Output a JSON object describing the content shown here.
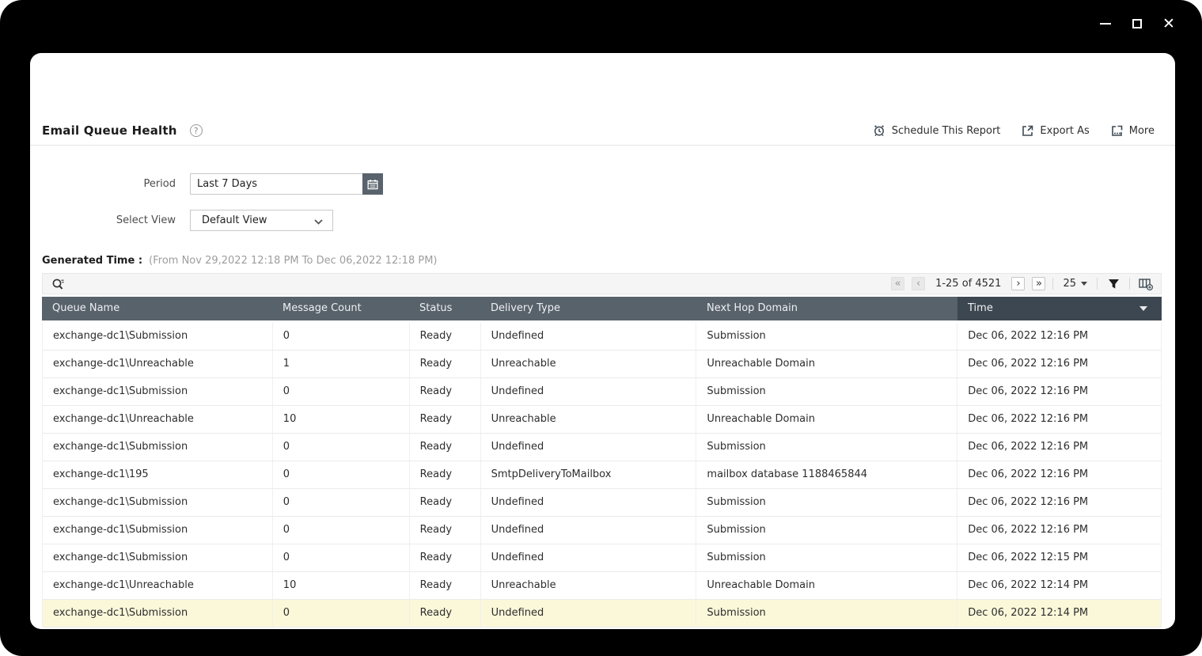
{
  "window": {
    "controls": [
      "minimize",
      "maximize",
      "close"
    ]
  },
  "header": {
    "title": "Email Queue Health",
    "help": "?",
    "actions": [
      {
        "icon": "alarm-clock",
        "label": "Schedule This Report"
      },
      {
        "icon": "export",
        "label": "Export As"
      },
      {
        "icon": "more",
        "label": "More"
      }
    ]
  },
  "filters": {
    "period_label": "Period",
    "period_value": "Last 7 Days",
    "select_view_label": "Select View",
    "select_view_value": "Default View"
  },
  "generated_time": {
    "label": "Generated Time :",
    "range": "(From Nov 29,2022 12:18 PM To Dec 06,2022 12:18 PM)"
  },
  "toolbar": {
    "pagination": {
      "first": "«",
      "prev": "‹",
      "range": "1-25 of 4521",
      "next": "›",
      "last": "»"
    },
    "page_size": "25"
  },
  "table": {
    "columns": [
      "Queue Name",
      "Message Count",
      "Status",
      "Delivery Type",
      "Next Hop Domain",
      "Time"
    ],
    "sort_column": "Time",
    "sort_direction": "desc",
    "rows": [
      {
        "queue": "exchange-dc1\\Submission",
        "count": "0",
        "status": "Ready",
        "delivery": "Undefined",
        "next_hop": "Submission",
        "time": "Dec 06, 2022 12:16 PM",
        "highlighted": false
      },
      {
        "queue": "exchange-dc1\\Unreachable",
        "count": "1",
        "status": "Ready",
        "delivery": "Unreachable",
        "next_hop": "Unreachable Domain",
        "time": "Dec 06, 2022 12:16 PM",
        "highlighted": false
      },
      {
        "queue": "exchange-dc1\\Submission",
        "count": "0",
        "status": "Ready",
        "delivery": "Undefined",
        "next_hop": "Submission",
        "time": "Dec 06, 2022 12:16 PM",
        "highlighted": false
      },
      {
        "queue": "exchange-dc1\\Unreachable",
        "count": "10",
        "status": "Ready",
        "delivery": "Unreachable",
        "next_hop": "Unreachable Domain",
        "time": "Dec 06, 2022 12:16 PM",
        "highlighted": false
      },
      {
        "queue": "exchange-dc1\\Submission",
        "count": "0",
        "status": "Ready",
        "delivery": "Undefined",
        "next_hop": "Submission",
        "time": "Dec 06, 2022 12:16 PM",
        "highlighted": false
      },
      {
        "queue": "exchange-dc1\\195",
        "count": "0",
        "status": "Ready",
        "delivery": "SmtpDeliveryToMailbox",
        "next_hop": "mailbox database 1188465844",
        "time": "Dec 06, 2022 12:16 PM",
        "highlighted": false
      },
      {
        "queue": "exchange-dc1\\Submission",
        "count": "0",
        "status": "Ready",
        "delivery": "Undefined",
        "next_hop": "Submission",
        "time": "Dec 06, 2022 12:16 PM",
        "highlighted": false
      },
      {
        "queue": "exchange-dc1\\Submission",
        "count": "0",
        "status": "Ready",
        "delivery": "Undefined",
        "next_hop": "Submission",
        "time": "Dec 06, 2022 12:16 PM",
        "highlighted": false
      },
      {
        "queue": "exchange-dc1\\Submission",
        "count": "0",
        "status": "Ready",
        "delivery": "Undefined",
        "next_hop": "Submission",
        "time": "Dec 06, 2022 12:15 PM",
        "highlighted": false
      },
      {
        "queue": "exchange-dc1\\Unreachable",
        "count": "10",
        "status": "Ready",
        "delivery": "Unreachable",
        "next_hop": "Unreachable Domain",
        "time": "Dec 06, 2022 12:14 PM",
        "highlighted": false
      },
      {
        "queue": "exchange-dc1\\Submission",
        "count": "0",
        "status": "Ready",
        "delivery": "Undefined",
        "next_hop": "Submission",
        "time": "Dec 06, 2022 12:14 PM",
        "highlighted": true
      }
    ]
  },
  "colors": {
    "header_bg": "#58626b",
    "sorted_header_bg": "#3d4751",
    "row_highlight": "#fbf8da",
    "toolbar_bg": "#f5f5f5",
    "frame": "#000000",
    "icon_dark": "#3f4a54"
  }
}
